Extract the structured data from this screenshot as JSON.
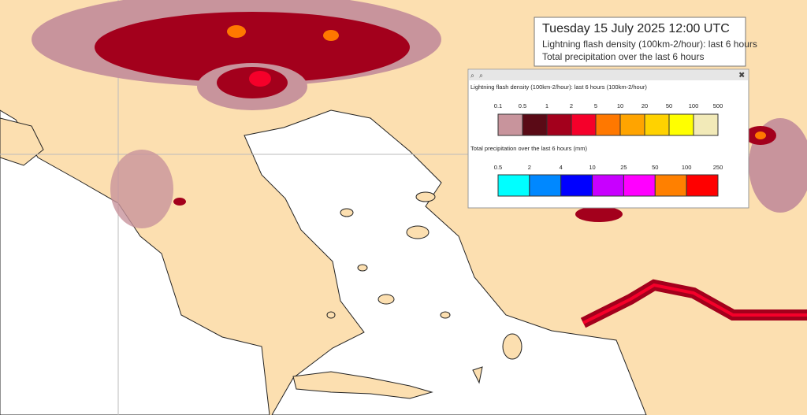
{
  "info_box": {
    "title": "Tuesday 15 July 2025 12:00 UTC",
    "lines": [
      "Lightning flash density (100km-2/hour): last 6 hours",
      "Total precipitation over the last 6 hours"
    ]
  },
  "legend": {
    "lightning": {
      "title": "Lightning flash density (100km-2/hour): last 6 hours (100km-2/hour)",
      "labels": [
        "0.1",
        "0.5",
        "1",
        "2",
        "5",
        "10",
        "20",
        "50",
        "100",
        "500"
      ],
      "colors": [
        "#c8949c",
        "#5a0a16",
        "#a3001c",
        "#f5002a",
        "#ff7800",
        "#ffa400",
        "#ffd200",
        "#ffff00",
        "#f2eab8"
      ]
    },
    "precipitation": {
      "title": "Total precipitation over the last 6 hours (mm)",
      "labels": [
        "0.5",
        "2",
        "4",
        "10",
        "25",
        "50",
        "100",
        "250"
      ],
      "colors": [
        "#00ffff",
        "#0088ff",
        "#0000ff",
        "#c800ff",
        "#ff00ff",
        "#ff8000",
        "#ff0000"
      ]
    }
  }
}
